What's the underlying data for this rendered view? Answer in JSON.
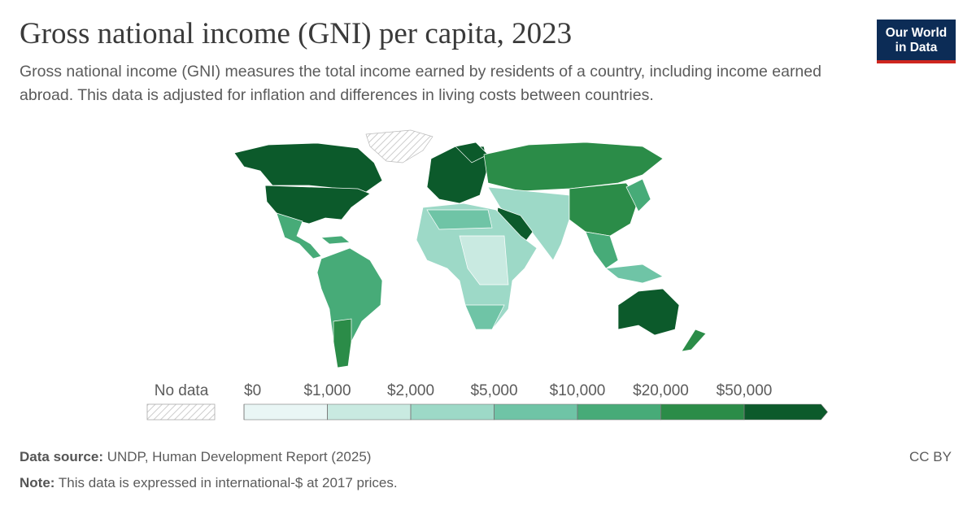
{
  "header": {
    "title": "Gross national income (GNI) per capita, 2023",
    "subtitle": "Gross national income (GNI) measures the total income earned by residents of a country, including income earned abroad. This data is adjusted for inflation and differences in living costs between countries."
  },
  "logo": {
    "lines": [
      "Our World",
      "in Data"
    ]
  },
  "legend": {
    "no_data": "No data",
    "ticks": [
      {
        "value": 0,
        "label": "$0"
      },
      {
        "value": 1000,
        "label": "$1,000"
      },
      {
        "value": 2000,
        "label": "$2,000"
      },
      {
        "value": 5000,
        "label": "$5,000"
      },
      {
        "value": 10000,
        "label": "$10,000"
      },
      {
        "value": 20000,
        "label": "$20,000"
      },
      {
        "value": 50000,
        "label": "$50,000"
      }
    ],
    "colors": [
      "#e9f6f5",
      "#c9eae1",
      "#9dd9c7",
      "#6fc4a6",
      "#47ab78",
      "#2b8c48",
      "#0c5a2b"
    ]
  },
  "footer": {
    "source": {
      "label": "Data source:",
      "text": "UNDP, Human Development Report (2025)"
    },
    "note": {
      "label": "Note:",
      "text": "This data is expressed in international-$ at 2017 prices."
    },
    "license": "CC BY"
  }
}
